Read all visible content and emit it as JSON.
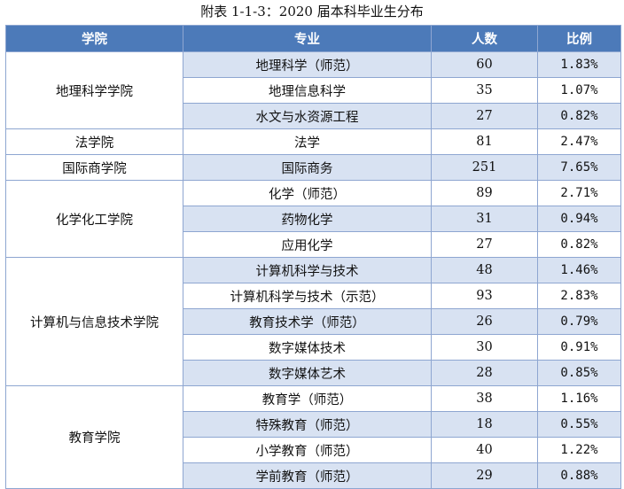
{
  "caption": "附表 1-1-3：2020 届本科毕业生分布",
  "headers": {
    "college": "学院",
    "major": "专业",
    "count": "人数",
    "ratio": "比例"
  },
  "groups": [
    {
      "college": "地理科学学院",
      "rows": [
        {
          "major": "地理科学（师范）",
          "count": "60",
          "ratio": "1.83%"
        },
        {
          "major": "地理信息科学",
          "count": "35",
          "ratio": "1.07%"
        },
        {
          "major": "水文与水资源工程",
          "count": "27",
          "ratio": "0.82%"
        }
      ]
    },
    {
      "college": "法学院",
      "rows": [
        {
          "major": "法学",
          "count": "81",
          "ratio": "2.47%"
        }
      ]
    },
    {
      "college": "国际商学院",
      "rows": [
        {
          "major": "国际商务",
          "count": "251",
          "ratio": "7.65%"
        }
      ]
    },
    {
      "college": "化学化工学院",
      "rows": [
        {
          "major": "化学（师范）",
          "count": "89",
          "ratio": "2.71%"
        },
        {
          "major": "药物化学",
          "count": "31",
          "ratio": "0.94%"
        },
        {
          "major": "应用化学",
          "count": "27",
          "ratio": "0.82%"
        }
      ]
    },
    {
      "college": "计算机与信息技术学院",
      "rows": [
        {
          "major": "计算机科学与技术",
          "count": "48",
          "ratio": "1.46%"
        },
        {
          "major": "计算机科学与技术（示范）",
          "count": "93",
          "ratio": "2.83%"
        },
        {
          "major": "教育技术学（师范）",
          "count": "26",
          "ratio": "0.79%"
        },
        {
          "major": "数字媒体技术",
          "count": "30",
          "ratio": "0.91%"
        },
        {
          "major": "数字媒体艺术",
          "count": "28",
          "ratio": "0.85%"
        }
      ]
    },
    {
      "college": "教育学院",
      "rows": [
        {
          "major": "教育学（师范）",
          "count": "38",
          "ratio": "1.16%"
        },
        {
          "major": "特殊教育（师范）",
          "count": "18",
          "ratio": "0.55%"
        },
        {
          "major": "小学教育（师范）",
          "count": "40",
          "ratio": "1.22%"
        },
        {
          "major": "学前教育（师范）",
          "count": "29",
          "ratio": "0.88%"
        }
      ]
    }
  ]
}
